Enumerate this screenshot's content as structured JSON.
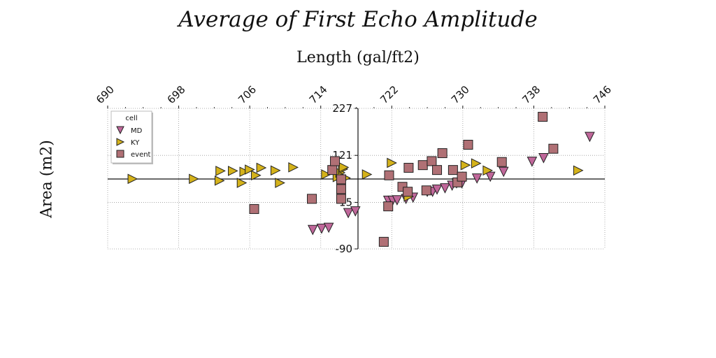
{
  "chart_data": {
    "type": "scatter",
    "title": "Average of First Echo Amplitude",
    "xlabel": "Length (gal/ft2)",
    "ylabel": "Area (m2)",
    "xlim": [
      690,
      746
    ],
    "ylim": [
      -90,
      227
    ],
    "xticks": [
      "690",
      "698",
      "706",
      "714",
      "722",
      "730",
      "738",
      "746"
    ],
    "yticks": [
      "227",
      "121",
      "15",
      "-90"
    ],
    "grid": true,
    "legend_title": "cell",
    "legend_position": "top-left",
    "series": [
      {
        "name": "MD",
        "marker": "triangle-down",
        "color": "#c0679a",
        "points": [
          [
            713.1,
            -47
          ],
          [
            714.1,
            -44
          ],
          [
            714.9,
            -42
          ],
          [
            717.1,
            -9
          ],
          [
            717.9,
            -5
          ],
          [
            721.6,
            19
          ],
          [
            722.1,
            19
          ],
          [
            722.6,
            20
          ],
          [
            723.6,
            23
          ],
          [
            724.4,
            26
          ],
          [
            726.0,
            39
          ],
          [
            726.6,
            39
          ],
          [
            727.1,
            44
          ],
          [
            728.0,
            47
          ],
          [
            728.8,
            53
          ],
          [
            729.3,
            58
          ],
          [
            729.9,
            58
          ],
          [
            731.6,
            69
          ],
          [
            733.1,
            73
          ],
          [
            734.6,
            84
          ],
          [
            737.8,
            107
          ],
          [
            739.1,
            115
          ],
          [
            744.3,
            163
          ]
        ]
      },
      {
        "name": "KY",
        "marker": "triangle-right",
        "color": "#d4b21a",
        "points": [
          [
            692.8,
            68
          ],
          [
            699.7,
            68
          ],
          [
            702.6,
            64
          ],
          [
            702.7,
            86
          ],
          [
            704.1,
            86
          ],
          [
            705.1,
            59
          ],
          [
            705.4,
            84
          ],
          [
            706.0,
            89
          ],
          [
            706.7,
            76
          ],
          [
            707.3,
            93
          ],
          [
            708.9,
            87
          ],
          [
            709.4,
            59
          ],
          [
            710.9,
            94
          ],
          [
            714.6,
            78
          ],
          [
            715.9,
            72
          ],
          [
            716.2,
            82
          ],
          [
            716.5,
            90
          ],
          [
            716.6,
            94
          ],
          [
            716.8,
            70
          ],
          [
            719.2,
            78
          ],
          [
            722.0,
            104
          ],
          [
            723.9,
            28
          ],
          [
            730.3,
            99
          ],
          [
            731.5,
            103
          ],
          [
            732.8,
            87
          ],
          [
            743.0,
            87
          ]
        ]
      },
      {
        "name": "event",
        "marker": "square",
        "color": "#b07075",
        "points": [
          [
            706.5,
            0
          ],
          [
            713.0,
            23
          ],
          [
            715.3,
            88
          ],
          [
            715.6,
            108
          ],
          [
            716.3,
            67
          ],
          [
            716.3,
            45
          ],
          [
            716.3,
            23
          ],
          [
            721.1,
            -74
          ],
          [
            721.6,
            6
          ],
          [
            721.7,
            76
          ],
          [
            723.2,
            50
          ],
          [
            723.8,
            39
          ],
          [
            723.9,
            93
          ],
          [
            725.5,
            99
          ],
          [
            725.9,
            42
          ],
          [
            726.5,
            108
          ],
          [
            727.1,
            88
          ],
          [
            727.7,
            126
          ],
          [
            728.9,
            88
          ],
          [
            729.4,
            60
          ],
          [
            729.9,
            73
          ],
          [
            730.6,
            145
          ],
          [
            734.4,
            106
          ],
          [
            739.0,
            208
          ],
          [
            740.2,
            136
          ]
        ]
      }
    ]
  }
}
